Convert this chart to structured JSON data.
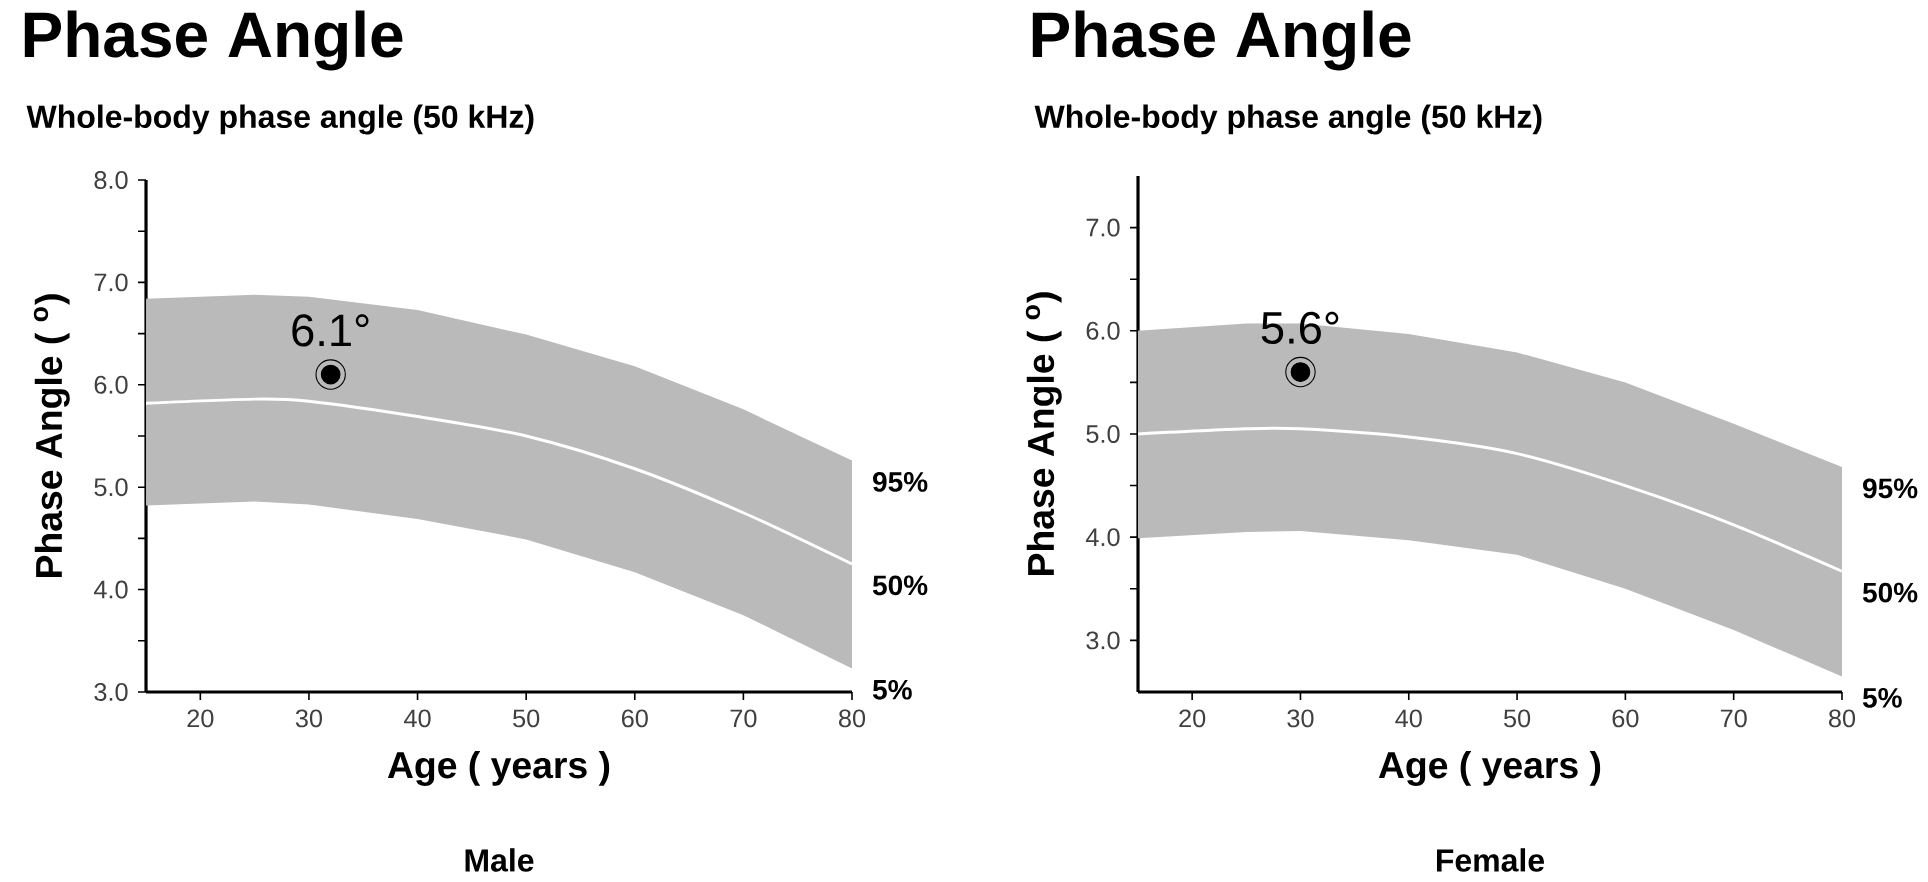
{
  "chart_data": [
    {
      "type": "line",
      "title": "Phase Angle",
      "subtitle": "Whole-body phase angle (50 kHz)",
      "xlabel": "Age ( years )",
      "ylabel": "Phase Angle ( $^{o}$)",
      "xlim": [
        15,
        80
      ],
      "xticks": [
        20,
        30,
        40,
        50,
        60,
        70,
        80
      ],
      "ylim": [
        3,
        8
      ],
      "yticks": [
        {
          "value": 3,
          "label": "3.0"
        },
        {
          "value": 3.5,
          "label": null
        },
        {
          "value": 4,
          "label": "4.0"
        },
        {
          "value": 4.5,
          "label": null
        },
        {
          "value": 5,
          "label": "5.0"
        },
        {
          "value": 5.5,
          "label": null
        },
        {
          "value": 6,
          "label": "6.0"
        },
        {
          "value": 6.5,
          "label": null
        },
        {
          "value": 7,
          "label": "7.0"
        },
        {
          "value": 7.5,
          "label": null
        },
        {
          "value": 8,
          "label": "8.0"
        }
      ],
      "series": [
        {
          "color": "#ffffff",
          "x": [
            15,
            25,
            30,
            40,
            50,
            60,
            70,
            80
          ],
          "values": [
            5.82,
            5.86,
            5.84,
            5.69,
            5.5,
            5.18,
            4.75,
            4.25
          ],
          "lower": [
            4.82,
            4.86,
            4.83,
            4.69,
            4.49,
            4.17,
            3.75,
            3.23
          ],
          "upper": [
            6.84,
            6.88,
            6.86,
            6.73,
            6.49,
            6.18,
            5.76,
            5.26
          ]
        },
        {
          "type": "scatter",
          "color": "#000000",
          "marker": "circle",
          "x": [
            32
          ],
          "values": [
            6.1
          ],
          "value_labels": [
            "6.1°"
          ]
        }
      ],
      "annotations": [
        "95%",
        "50%",
        "5%",
        "Male"
      ]
    },
    {
      "type": "line",
      "title": "Phase Angle",
      "subtitle": "Whole-body phase angle (50 kHz)",
      "xlabel": "Age ( years )",
      "ylabel": "Phase Angle ( $^{o}$)",
      "xlim": [
        15,
        80
      ],
      "xticks": [
        20,
        30,
        40,
        50,
        60,
        70,
        80
      ],
      "ylim": [
        2.5,
        7.5
      ],
      "yticks": [
        {
          "value": 3,
          "label": "3.0"
        },
        {
          "value": 3.5,
          "label": null
        },
        {
          "value": 4,
          "label": "4.0"
        },
        {
          "value": 4.5,
          "label": null
        },
        {
          "value": 5,
          "label": "5.0"
        },
        {
          "value": 5.5,
          "label": null
        },
        {
          "value": 6,
          "label": "6.0"
        },
        {
          "value": 6.5,
          "label": null
        },
        {
          "value": 7,
          "label": "7.0"
        }
      ],
      "series": [
        {
          "color": "#ffffff",
          "x": [
            15,
            25,
            30,
            40,
            50,
            60,
            70,
            80
          ],
          "values": [
            5.0,
            5.05,
            5.05,
            4.97,
            4.81,
            4.5,
            4.12,
            3.67
          ],
          "lower": [
            3.99,
            4.05,
            4.06,
            3.97,
            3.83,
            3.5,
            3.1,
            2.65
          ],
          "upper": [
            6.0,
            6.07,
            6.07,
            5.97,
            5.79,
            5.5,
            5.1,
            4.68
          ]
        },
        {
          "type": "scatter",
          "color": "#000000",
          "marker": "circle",
          "x": [
            30
          ],
          "values": [
            5.6
          ],
          "value_labels": [
            "5.6°"
          ]
        }
      ],
      "annotations": [
        "95%",
        "50%",
        "5%",
        "Female"
      ]
    }
  ]
}
